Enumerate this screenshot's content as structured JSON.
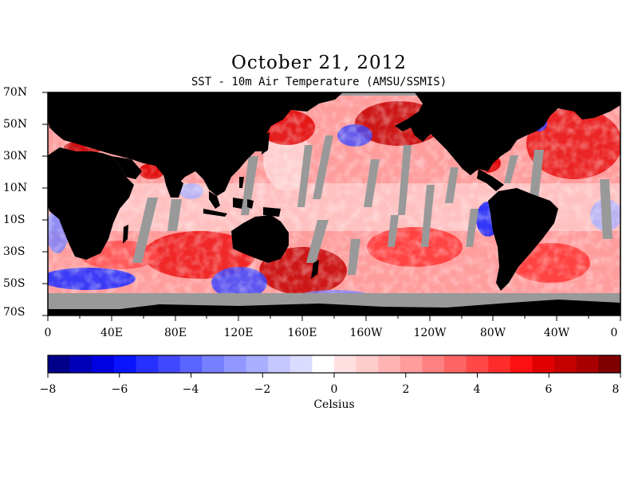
{
  "title": "October 21, 2012",
  "subtitle": "SST - 10m Air Temperature (AMSU/SSMIS)",
  "lat_labels": [
    "70N",
    "50N",
    "30N",
    "10N",
    "10S",
    "30S",
    "50S",
    "70S"
  ],
  "lon_labels": [
    "0",
    "40E",
    "80E",
    "120E",
    "160E",
    "160W",
    "120W",
    "80W",
    "40W",
    "0"
  ],
  "colorbar": {
    "min": -8,
    "max": 8,
    "tick_labels": [
      "−8",
      "−6",
      "−4",
      "−2",
      "0",
      "2",
      "4",
      "6",
      "8"
    ],
    "unit": "Celsius",
    "colors": [
      "#00008b",
      "#0000b8",
      "#0000e0",
      "#0a14ff",
      "#2630ff",
      "#4049ff",
      "#5a64ff",
      "#7680ff",
      "#9098ff",
      "#aab0ff",
      "#c4c8ff",
      "#dadcff",
      "#ffffff",
      "#ffe0e0",
      "#ffcccc",
      "#ffb4b4",
      "#ff9c9c",
      "#ff8080",
      "#ff6464",
      "#ff4848",
      "#ff2c2c",
      "#ff1010",
      "#e00000",
      "#c40000",
      "#a80000",
      "#800000"
    ]
  },
  "legend_colors": {
    "land": "#000000",
    "no_data": "#999999"
  }
}
